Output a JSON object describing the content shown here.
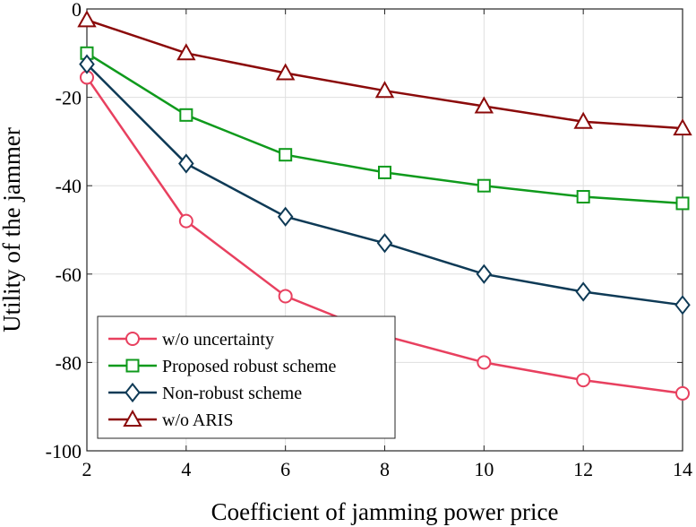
{
  "chart_data": {
    "type": "line",
    "title": "",
    "xlabel": "Coefficient of jamming power price",
    "ylabel": "Utility of the jammer",
    "x": [
      2,
      4,
      6,
      8,
      10,
      12,
      14
    ],
    "xlim": [
      2,
      14
    ],
    "ylim": [
      -100,
      0
    ],
    "xticks": [
      2,
      4,
      6,
      8,
      10,
      12,
      14
    ],
    "yticks": [
      0,
      -20,
      -40,
      -60,
      -80,
      -100
    ],
    "grid": true,
    "legend_position": "bottom-left",
    "series": [
      {
        "name": "w/o uncertainty",
        "color": "#e8405f",
        "marker": "circle",
        "values": [
          -15.5,
          -48,
          -65,
          -74,
          -80,
          -84,
          -87
        ]
      },
      {
        "name": "Proposed robust scheme",
        "color": "#0f9a1c",
        "marker": "square",
        "values": [
          -10,
          -24,
          -33,
          -37,
          -40,
          -42.5,
          -44
        ]
      },
      {
        "name": "Non-robust scheme",
        "color": "#0e3a56",
        "marker": "diamond",
        "values": [
          -12.5,
          -35,
          -47,
          -53,
          -60,
          -64,
          -67
        ]
      },
      {
        "name": "w/o ARIS",
        "color": "#8b0a0a",
        "marker": "triangle",
        "values": [
          -2.5,
          -10,
          -14.5,
          -18.5,
          -22,
          -25.5,
          -27
        ]
      }
    ]
  }
}
